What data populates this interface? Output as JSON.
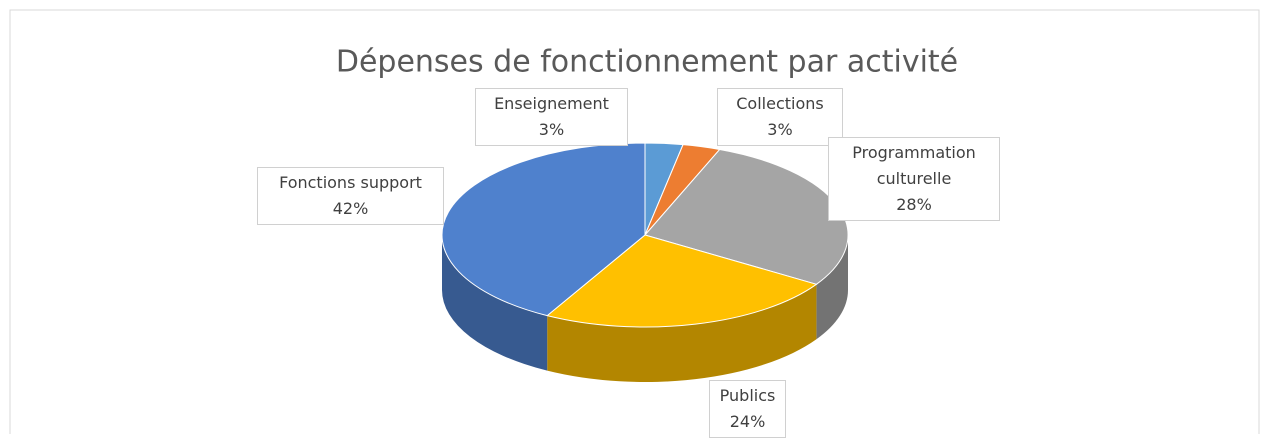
{
  "chart_data": {
    "type": "pie",
    "title": "Dépenses de fonctionnement par activité",
    "categories": [
      "Enseignement",
      "Collections",
      "Programmation culturelle",
      "Publics",
      "Fonctions support"
    ],
    "values": [
      3,
      3,
      28,
      24,
      42
    ],
    "value_labels": [
      "3%",
      "3%",
      "28%",
      "24%",
      "42%"
    ],
    "colors": [
      "#5b9bd5",
      "#ed7d31",
      "#a5a5a5",
      "#ffc000",
      "#4f81cd"
    ],
    "three_d": true
  }
}
